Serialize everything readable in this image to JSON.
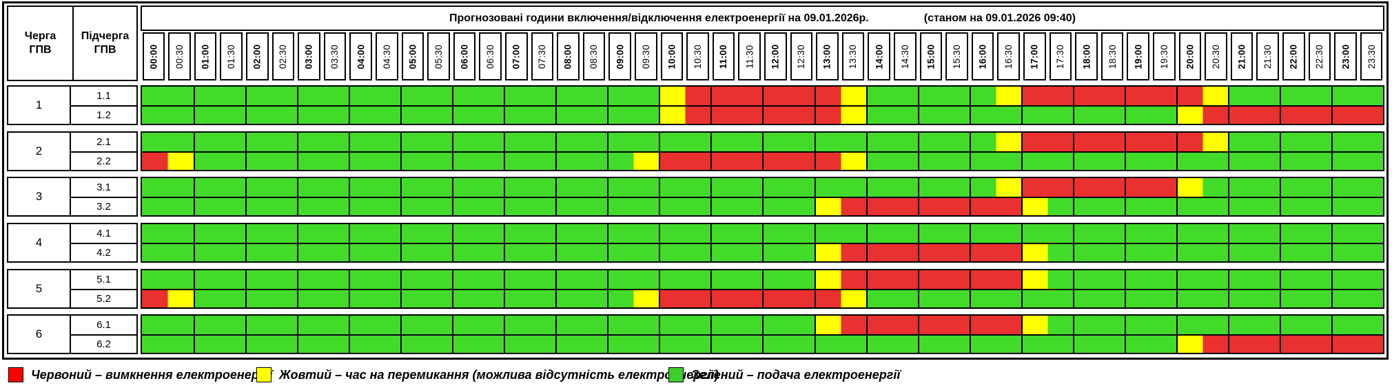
{
  "title": {
    "main": "Прогнозовані години включення/відключення електроенергії на 09.01.2026р.",
    "status": "(станом на 09.01.2026 09:40)"
  },
  "header": {
    "queue_col": "Черга\nГПВ",
    "subqueue_col": "Підчерга\nГПВ"
  },
  "time_slots": [
    "00:00",
    "00:30",
    "01:00",
    "01:30",
    "02:00",
    "02:30",
    "03:00",
    "03:30",
    "04:00",
    "04:30",
    "05:00",
    "05:30",
    "06:00",
    "06:30",
    "07:00",
    "07:30",
    "08:00",
    "08:30",
    "09:00",
    "09:30",
    "10:00",
    "10:30",
    "11:00",
    "11:30",
    "12:00",
    "12:30",
    "13:00",
    "13:30",
    "14:00",
    "14:30",
    "15:00",
    "15:30",
    "16:00",
    "16:30",
    "17:00",
    "17:30",
    "18:00",
    "18:30",
    "19:00",
    "19:30",
    "20:00",
    "20:30",
    "21:00",
    "21:30",
    "22:00",
    "22:30",
    "23:00",
    "23:30"
  ],
  "status_colors": {
    "G": "#43DB29",
    "Y": "#FFFF00",
    "R": "#E93130"
  },
  "queues": [
    {
      "id": "1",
      "subqueues": [
        {
          "label": "1.1",
          "cells": "GGGGGGGGGGGGGGGGGGGGYRRRRRRYGGGGGYRRRRRRRYGGGGGG"
        },
        {
          "label": "1.2",
          "cells": "GGGGGGGGGGGGGGGGGGGGYRRRRRRYGGGGGGGGGGGGYRRRRRRR"
        }
      ]
    },
    {
      "id": "2",
      "subqueues": [
        {
          "label": "2.1",
          "cells": "GGGGGGGGGGGGGGGGGGGGGGGGGGGGGGGGGYRRRRRRRYGGGGGG"
        },
        {
          "label": "2.2",
          "cells": "RYGGGGGGGGGGGGGGGGGYRRRRRRRYGGGGGGGGGGGGGGGGGGGG"
        }
      ]
    },
    {
      "id": "3",
      "subqueues": [
        {
          "label": "3.1",
          "cells": "GGGGGGGGGGGGGGGGGGGGGGGGGGGGGGGGGYRRRRRRYGGGGGGG"
        },
        {
          "label": "3.2",
          "cells": "GGGGGGGGGGGGGGGGGGGGGGGGGGYRRRRRRRYGGGGGGGGGGGGG"
        }
      ]
    },
    {
      "id": "4",
      "subqueues": [
        {
          "label": "4.1",
          "cells": "GGGGGGGGGGGGGGGGGGGGGGGGGGGGGGGGGGGGGGGGGGGGGGGG"
        },
        {
          "label": "4.2",
          "cells": "GGGGGGGGGGGGGGGGGGGGGGGGGGYRRRRRRRYGGGGGGGGGGGGG"
        }
      ]
    },
    {
      "id": "5",
      "subqueues": [
        {
          "label": "5.1",
          "cells": "GGGGGGGGGGGGGGGGGGGGGGGGGGYRRRRRRRYGGGGGGGGGGGGG"
        },
        {
          "label": "5.2",
          "cells": "RYGGGGGGGGGGGGGGGGGYRRRRRRRYGGGGGGGGGGGGGGGGGGGG"
        }
      ]
    },
    {
      "id": "6",
      "subqueues": [
        {
          "label": "6.1",
          "cells": "GGGGGGGGGGGGGGGGGGGGGGGGGGYRRRRRRRYGGGGGGGGGGGGG"
        },
        {
          "label": "6.2",
          "cells": "GGGGGGGGGGGGGGGGGGGGGGGGGGGGGGGGGGGGGGGGYRRRRRRR"
        }
      ]
    }
  ],
  "legend": [
    {
      "color": "#FF0000",
      "label": "Червоний – вимкнення електроенергії"
    },
    {
      "color": "#FFFF00",
      "label": "Жовтий – час на перемикання (можлива відсутність електроенергії)"
    },
    {
      "color": "#3CCF2A",
      "label": "Зелений – подача електроенергії"
    }
  ],
  "chart_data": {
    "type": "heatmap",
    "title": "Прогнозовані години включення/відключення електроенергії на 09.01.2026р. (станом на 09.01.2026 09:40)",
    "x_labels": [
      "00:00",
      "00:30",
      "01:00",
      "01:30",
      "02:00",
      "02:30",
      "03:00",
      "03:30",
      "04:00",
      "04:30",
      "05:00",
      "05:30",
      "06:00",
      "06:30",
      "07:00",
      "07:30",
      "08:00",
      "08:30",
      "09:00",
      "09:30",
      "10:00",
      "10:30",
      "11:00",
      "11:30",
      "12:00",
      "12:30",
      "13:00",
      "13:30",
      "14:00",
      "14:30",
      "15:00",
      "15:30",
      "16:00",
      "16:30",
      "17:00",
      "17:30",
      "18:00",
      "18:30",
      "19:00",
      "19:30",
      "20:00",
      "20:30",
      "21:00",
      "21:30",
      "22:00",
      "22:30",
      "23:00",
      "23:30"
    ],
    "y_labels": [
      "1.1",
      "1.2",
      "2.1",
      "2.2",
      "3.1",
      "3.2",
      "4.1",
      "4.2",
      "5.1",
      "5.2",
      "6.1",
      "6.2"
    ],
    "values_encoding": {
      "G": "подача електроенергії",
      "Y": "час на перемикання",
      "R": "вимкнення електроенергії"
    },
    "rows": [
      "GGGGGGGGGGGGGGGGGGGGYRRRRRRYGGGGGYRRRRRRRYGGGGGG",
      "GGGGGGGGGGGGGGGGGGGGYRRRRRRYGGGGGGGGGGGGYRRRRRRR",
      "GGGGGGGGGGGGGGGGGGGGGGGGGGGGGGGGGYRRRRRRRYGGGGGG",
      "RYGGGGGGGGGGGGGGGGGYRRRRRRRYGGGGGGGGGGGGGGGGGGGG",
      "GGGGGGGGGGGGGGGGGGGGGGGGGGGGGGGGGYRRRRRRYGGGGGGG",
      "GGGGGGGGGGGGGGGGGGGGGGGGGGYRRRRRRRYGGGGGGGGGGGGG",
      "GGGGGGGGGGGGGGGGGGGGGGGGGGGGGGGGGGGGGGGGGGGGGGGG",
      "GGGGGGGGGGGGGGGGGGGGGGGGGGYRRRRRRRYGGGGGGGGGGGGG",
      "GGGGGGGGGGGGGGGGGGGGGGGGGGYRRRRRRRYGGGGGGGGGGGGG",
      "RYGGGGGGGGGGGGGGGGGYRRRRRRRYGGGGGGGGGGGGGGGGGGGG",
      "GGGGGGGGGGGGGGGGGGGGGGGGGGYRRRRRRRYGGGGGGGGGGGGG",
      "GGGGGGGGGGGGGGGGGGGGGGGGGGGGGGGGGGGGGGGGYRRRRRRR"
    ],
    "legend_position": "bottom",
    "grid": true
  }
}
